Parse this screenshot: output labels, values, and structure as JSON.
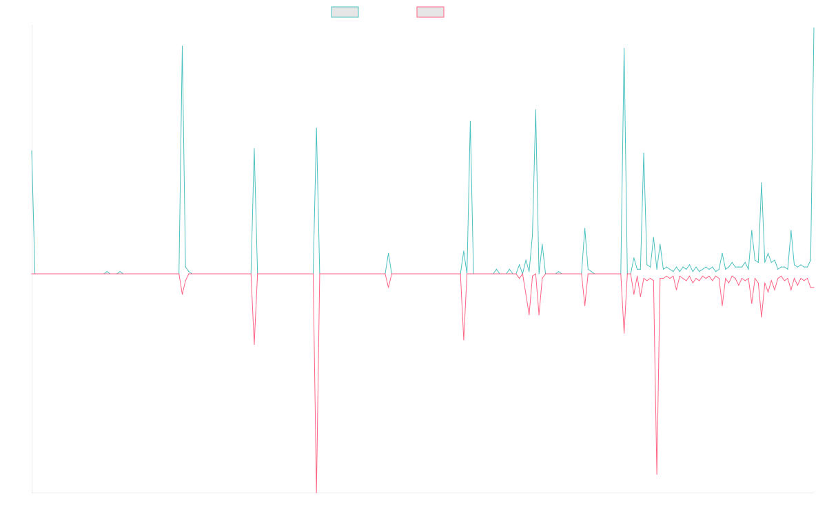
{
  "chart_data": {
    "type": "line",
    "title": "",
    "xlabel": "",
    "ylabel": "",
    "ylim": [
      -1,
      1
    ],
    "grid": false,
    "legend_position": "top",
    "legend_labels_visible": false,
    "x_count": 232,
    "series": [
      {
        "color": "#4bc0c0",
        "fill_color": "#e6e6e6",
        "points": [
          [
            0,
            0.54
          ],
          [
            1,
            0
          ],
          [
            22,
            0
          ],
          [
            23,
            0.01
          ],
          [
            24,
            0
          ],
          [
            26,
            0
          ],
          [
            27,
            0.01
          ],
          [
            28,
            0
          ],
          [
            45,
            0
          ],
          [
            46,
            1
          ],
          [
            47,
            0.03
          ],
          [
            48,
            0.01
          ],
          [
            49,
            0
          ],
          [
            67,
            0
          ],
          [
            68,
            0.55
          ],
          [
            69,
            0
          ],
          [
            86,
            0
          ],
          [
            87,
            0.64
          ],
          [
            88,
            0
          ],
          [
            108,
            0
          ],
          [
            109,
            0.09
          ],
          [
            110,
            0
          ],
          [
            131,
            0
          ],
          [
            132,
            0.1
          ],
          [
            133,
            0
          ],
          [
            134,
            0.67
          ],
          [
            135,
            0
          ],
          [
            141,
            0
          ],
          [
            142,
            0.02
          ],
          [
            143,
            0
          ],
          [
            145,
            0
          ],
          [
            146,
            0.02
          ],
          [
            147,
            0
          ],
          [
            148,
            0
          ],
          [
            149,
            0.04
          ],
          [
            150,
            0
          ],
          [
            151,
            0.06
          ],
          [
            152,
            0.01
          ],
          [
            153,
            0.17
          ],
          [
            154,
            0.72
          ],
          [
            155,
            0
          ],
          [
            156,
            0.13
          ],
          [
            157,
            0
          ],
          [
            160,
            0
          ],
          [
            161,
            0.01
          ],
          [
            162,
            0
          ],
          [
            168,
            0
          ],
          [
            169,
            0.2
          ],
          [
            170,
            0.02
          ],
          [
            171,
            0.01
          ],
          [
            172,
            0
          ],
          [
            175,
            0
          ],
          [
            180,
            0
          ],
          [
            181,
            0.99
          ],
          [
            182,
            0
          ],
          [
            183,
            0
          ],
          [
            184,
            0.07
          ],
          [
            185,
            0.02
          ],
          [
            186,
            0.02
          ],
          [
            187,
            0.53
          ],
          [
            188,
            0.04
          ],
          [
            189,
            0.03
          ],
          [
            190,
            0.16
          ],
          [
            191,
            0.02
          ],
          [
            192,
            0.13
          ],
          [
            193,
            0.02
          ],
          [
            194,
            0.03
          ],
          [
            195,
            0.02
          ],
          [
            196,
            0.01
          ],
          [
            197,
            0.03
          ],
          [
            198,
            0.01
          ],
          [
            199,
            0.03
          ],
          [
            200,
            0.02
          ],
          [
            201,
            0.04
          ],
          [
            202,
            0.01
          ],
          [
            203,
            0.03
          ],
          [
            204,
            0.01
          ],
          [
            205,
            0.02
          ],
          [
            206,
            0.03
          ],
          [
            207,
            0.02
          ],
          [
            208,
            0.03
          ],
          [
            209,
            0.01
          ],
          [
            210,
            0.02
          ],
          [
            211,
            0.09
          ],
          [
            212,
            0.02
          ],
          [
            213,
            0.03
          ],
          [
            214,
            0.05
          ],
          [
            215,
            0.03
          ],
          [
            216,
            0.03
          ],
          [
            217,
            0.03
          ],
          [
            218,
            0.05
          ],
          [
            219,
            0.02
          ],
          [
            220,
            0.19
          ],
          [
            221,
            0.06
          ],
          [
            222,
            0.05
          ],
          [
            223,
            0.4
          ],
          [
            224,
            0.05
          ],
          [
            225,
            0.09
          ],
          [
            226,
            0.05
          ],
          [
            227,
            0.06
          ],
          [
            228,
            0.02
          ],
          [
            229,
            0.03
          ],
          [
            230,
            0.03
          ],
          [
            231,
            0.02
          ],
          [
            232,
            0.19
          ],
          [
            233,
            0.04
          ],
          [
            234,
            0.03
          ],
          [
            235,
            0.04
          ],
          [
            236,
            0.03
          ],
          [
            237,
            0.03
          ],
          [
            238,
            0.06
          ],
          [
            239,
            1.08
          ]
        ]
      },
      {
        "color": "#ff6384",
        "fill_color": "#e6e6e6",
        "points": [
          [
            0,
            0
          ],
          [
            45,
            0
          ],
          [
            46,
            -0.09
          ],
          [
            47,
            -0.03
          ],
          [
            48,
            0
          ],
          [
            67,
            0
          ],
          [
            68,
            -0.31
          ],
          [
            69,
            0
          ],
          [
            86,
            0
          ],
          [
            87,
            -1.0
          ],
          [
            88,
            0
          ],
          [
            108,
            0
          ],
          [
            109,
            -0.06
          ],
          [
            110,
            0
          ],
          [
            131,
            0
          ],
          [
            132,
            -0.29
          ],
          [
            133,
            0
          ],
          [
            148,
            0
          ],
          [
            149,
            -0.02
          ],
          [
            150,
            0
          ],
          [
            151,
            -0.09
          ],
          [
            152,
            -0.18
          ],
          [
            153,
            -0.01
          ],
          [
            154,
            0
          ],
          [
            155,
            -0.18
          ],
          [
            156,
            -0.02
          ],
          [
            157,
            0
          ],
          [
            168,
            0
          ],
          [
            169,
            -0.14
          ],
          [
            170,
            0
          ],
          [
            180,
            0
          ],
          [
            181,
            -0.26
          ],
          [
            182,
            0
          ],
          [
            183,
            0
          ],
          [
            184,
            -0.09
          ],
          [
            185,
            -0.01
          ],
          [
            186,
            -0.1
          ],
          [
            187,
            -0.02
          ],
          [
            188,
            -0.03
          ],
          [
            189,
            -0.02
          ],
          [
            190,
            -0.03
          ],
          [
            191,
            -0.88
          ],
          [
            192,
            -0.02
          ],
          [
            193,
            -0.02
          ],
          [
            194,
            -0.01
          ],
          [
            195,
            -0.02
          ],
          [
            196,
            -0.01
          ],
          [
            197,
            -0.07
          ],
          [
            198,
            -0.01
          ],
          [
            199,
            -0.02
          ],
          [
            200,
            -0.03
          ],
          [
            201,
            -0.01
          ],
          [
            202,
            -0.04
          ],
          [
            203,
            -0.02
          ],
          [
            204,
            -0.03
          ],
          [
            205,
            -0.01
          ],
          [
            206,
            -0.02
          ],
          [
            207,
            -0.01
          ],
          [
            208,
            -0.03
          ],
          [
            209,
            -0.01
          ],
          [
            210,
            -0.02
          ],
          [
            211,
            -0.14
          ],
          [
            212,
            -0.02
          ],
          [
            213,
            -0.04
          ],
          [
            214,
            -0.01
          ],
          [
            215,
            -0.02
          ],
          [
            216,
            -0.05
          ],
          [
            217,
            -0.02
          ],
          [
            218,
            -0.03
          ],
          [
            219,
            -0.02
          ],
          [
            220,
            -0.13
          ],
          [
            221,
            -0.02
          ],
          [
            222,
            -0.04
          ],
          [
            223,
            -0.19
          ],
          [
            224,
            -0.04
          ],
          [
            225,
            -0.08
          ],
          [
            226,
            -0.03
          ],
          [
            227,
            -0.07
          ],
          [
            228,
            -0.02
          ],
          [
            229,
            -0.01
          ],
          [
            230,
            -0.03
          ],
          [
            231,
            -0.02
          ],
          [
            232,
            -0.07
          ],
          [
            233,
            -0.02
          ],
          [
            234,
            -0.05
          ],
          [
            235,
            -0.02
          ],
          [
            236,
            -0.03
          ],
          [
            237,
            -0.02
          ],
          [
            238,
            -0.06
          ],
          [
            239,
            -0.06
          ]
        ]
      }
    ]
  }
}
